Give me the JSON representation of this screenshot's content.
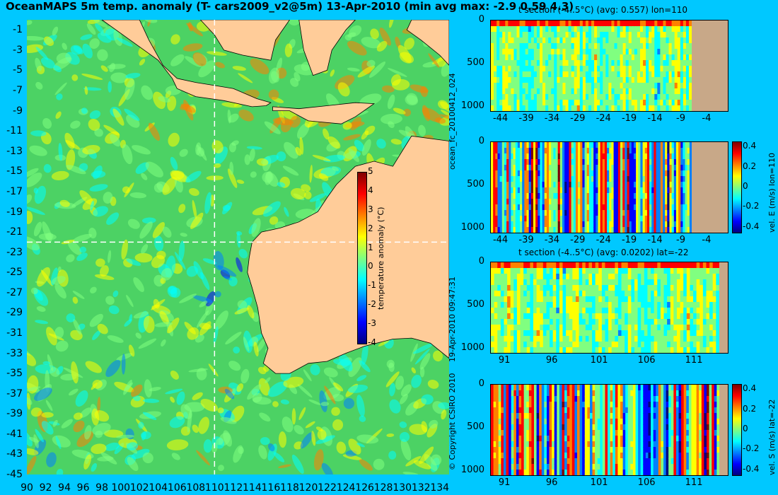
{
  "title": "OceanMAPS 5m temp. anomaly (T- cars2009_v2@5m) 13-Apr-2010 (min avg max: -2.9 0.59 4.3)",
  "side_texts": {
    "run_id": "ocean_fc_20100412_024",
    "timestamp": "19-Apr-2010 09:47:31",
    "copyright": "© Copyright CSIRO 2010"
  },
  "colors": {
    "background": "#00c8ff",
    "land": "#ffcc99",
    "section_land": "#c8a888",
    "colormap": [
      "#00007f",
      "#0000ff",
      "#0080ff",
      "#00ffff",
      "#80ff80",
      "#ffff00",
      "#ff8000",
      "#ff0000",
      "#7f0000"
    ]
  },
  "chart_data": [
    {
      "type": "heatmap",
      "name": "temperature anomaly map",
      "title": "OceanMAPS 5m temp. anomaly (T- cars2009_v2@5m) 13-Apr-2010 (min avg max: -2.9 0.59 4.3)",
      "xlim": [
        90,
        135
      ],
      "ylim": [
        -45,
        0
      ],
      "x_ticks": [
        "90",
        "92",
        "94",
        "96",
        "98",
        "100",
        "102",
        "104",
        "106",
        "108",
        "110",
        "112",
        "114",
        "116",
        "118",
        "120",
        "122",
        "124",
        "126",
        "128",
        "130",
        "132",
        "134"
      ],
      "y_ticks": [
        "-1",
        "-3",
        "-5",
        "-7",
        "-9",
        "-11",
        "-13",
        "-15",
        "-17",
        "-19",
        "-21",
        "-23",
        "-25",
        "-27",
        "-29",
        "-31",
        "-33",
        "-35",
        "-37",
        "-39",
        "-41",
        "-43",
        "-45"
      ],
      "crosshair": {
        "lon": 110,
        "lat": -22
      },
      "colorbar": {
        "label": "temperature anomaly (°C)",
        "range": [
          -4,
          5
        ],
        "ticks": [
          "5",
          "4",
          "3",
          "2",
          "1",
          "0",
          "-1",
          "-2",
          "-3",
          "-4"
        ]
      },
      "stats": {
        "min": -2.9,
        "avg": 0.59,
        "max": 4.3
      }
    },
    {
      "type": "heatmap",
      "name": "t section lon=110",
      "title": "t section (-4..5°C) (avg: 0.557) lon=110",
      "x_ticks": [
        "-44",
        "-39",
        "-34",
        "-29",
        "-24",
        "-19",
        "-14",
        "-9",
        "-4"
      ],
      "xlim": [
        -46,
        0
      ],
      "y_ticks": [
        "0",
        "500",
        "1000"
      ],
      "ylim": [
        1050,
        0
      ],
      "land_from_x": -7
    },
    {
      "type": "heatmap",
      "name": "vel. E section lon=110",
      "title": "",
      "x_ticks": [
        "-44",
        "-39",
        "-34",
        "-29",
        "-24",
        "-19",
        "-14",
        "-9",
        "-4"
      ],
      "xlim": [
        -46,
        0
      ],
      "y_ticks": [
        "0",
        "500",
        "1000"
      ],
      "ylim": [
        1050,
        0
      ],
      "land_from_x": -7,
      "colorbar": {
        "label": "vel. E (m/s) lon=110",
        "ticks": [
          "0.4",
          "0.2",
          "0",
          "-0.2",
          "-0.4"
        ],
        "range": [
          -0.45,
          0.45
        ]
      }
    },
    {
      "type": "heatmap",
      "name": "t section lat=-22",
      "title": "t section (-4..5°C) (avg: 0.0202) lat=-22",
      "x_ticks": [
        "91",
        "96",
        "101",
        "106",
        "111"
      ],
      "xlim": [
        89.5,
        114.5
      ],
      "y_ticks": [
        "0",
        "500",
        "1000"
      ],
      "ylim": [
        1050,
        0
      ],
      "land_from_x": 113.6
    },
    {
      "type": "heatmap",
      "name": "vel. S section lat=-22",
      "title": "",
      "x_ticks": [
        "91",
        "96",
        "101",
        "106",
        "111"
      ],
      "xlim": [
        89.5,
        114.5
      ],
      "y_ticks": [
        "0",
        "500",
        "1000"
      ],
      "ylim": [
        1050,
        0
      ],
      "land_from_x": 113.6,
      "colorbar": {
        "label": "vel. S (m/s) lat=-22",
        "ticks": [
          "0.4",
          "0.2",
          "0",
          "-0.2",
          "-0.4"
        ],
        "range": [
          -0.45,
          0.45
        ]
      }
    }
  ]
}
